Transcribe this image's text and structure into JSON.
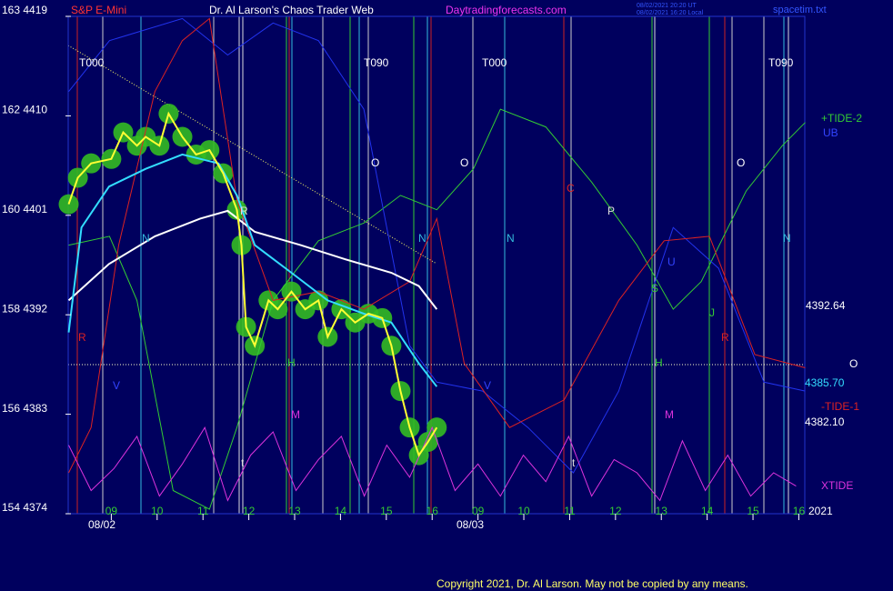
{
  "chart_data": {
    "type": "line",
    "instrument": "S&P E-Mini",
    "title": "Dr. Al Larson's Chaos Trader Web",
    "site": "Daytradingforecasts.com",
    "timestamps": [
      "08/02/2021 20:20 UT",
      "08/02/2021 16:20 Local"
    ],
    "file": "spacetim.txt",
    "copyright": "Copyright 2021, Dr. Al Larson. May not be copied by any means.",
    "year": "2021",
    "date_labels": [
      "08/02",
      "08/03"
    ],
    "ylim": [
      4374,
      4419
    ],
    "yticks": [
      {
        "value": 4419,
        "label": "163 4419"
      },
      {
        "value": 4410,
        "label": "162 4410"
      },
      {
        "value": 4401,
        "label": "160 4401"
      },
      {
        "value": 4392,
        "label": "158 4392"
      },
      {
        "value": 4383,
        "label": "156 4383"
      },
      {
        "value": 4374,
        "label": "154 4374"
      }
    ],
    "xlim": [
      0,
      16.13
    ],
    "xticks": [
      {
        "value": 1,
        "label": "09"
      },
      {
        "value": 2,
        "label": "10"
      },
      {
        "value": 3,
        "label": "11"
      },
      {
        "value": 4,
        "label": "12"
      },
      {
        "value": 5,
        "label": "13"
      },
      {
        "value": 6,
        "label": "14"
      },
      {
        "value": 7,
        "label": "15"
      },
      {
        "value": 8,
        "label": "16"
      },
      {
        "value": 9,
        "label": "09"
      },
      {
        "value": 10,
        "label": "10"
      },
      {
        "value": 11,
        "label": "11"
      },
      {
        "value": 12,
        "label": "12"
      },
      {
        "value": 13,
        "label": "13"
      },
      {
        "value": 14,
        "label": "14"
      },
      {
        "value": 15,
        "label": "15"
      },
      {
        "value": 16,
        "label": "16"
      }
    ],
    "right_labels": [
      4392.64,
      "O",
      {
        "value": 4385.7,
        "label": "4385.70"
      },
      {
        "value": 4382.1,
        "label": "4382.10"
      }
    ],
    "annotations": [
      "T000",
      "T090",
      "T000",
      "T090",
      "R",
      "N",
      "V",
      "R",
      "H",
      "M",
      "t",
      "O",
      "O",
      "N",
      "N",
      "V",
      "C",
      "P",
      "U",
      "S",
      "J",
      "H",
      "R",
      "M",
      "t",
      "O",
      "N"
    ],
    "series": [
      {
        "color": "#ffff33",
        "x": [
          0.07,
          0.27,
          0.56,
          1.0,
          1.26,
          1.56,
          1.75,
          2.05,
          2.25,
          2.55,
          2.85,
          3.14,
          3.44,
          3.74,
          3.84,
          3.94,
          4.13,
          4.43,
          4.63,
          4.93,
          5.23,
          5.52,
          5.72,
          6.02,
          6.32,
          6.61,
          6.91,
          7.11,
          7.31,
          7.51,
          7.71,
          7.91,
          8.1
        ],
        "values": [
          4402.0,
          4404.4,
          4405.7,
          4406.1,
          4408.5,
          4407.3,
          4408.1,
          4407.3,
          4410.2,
          4408.1,
          4406.5,
          4406.9,
          4404.8,
          4401.5,
          4398.3,
          4390.9,
          4389.2,
          4393.3,
          4392.5,
          4394.1,
          4392.5,
          4393.3,
          4390.0,
          4392.5,
          4391.3,
          4392.1,
          4391.7,
          4389.2,
          4385.1,
          4381.8,
          4379.3,
          4380.5,
          4381.8
        ]
      },
      {
        "color": "#33ddff",
        "x": [
          0.07,
          0.35,
          0.95,
          1.75,
          2.55,
          3.34,
          3.74,
          4.13,
          4.93,
          5.72,
          6.51,
          7.11,
          7.71,
          8.1
        ],
        "values": [
          4390.4,
          4399.9,
          4403.6,
          4405.2,
          4406.5,
          4405.7,
          4402.8,
          4398.3,
          4395.8,
          4393.3,
          4392.1,
          4391.3,
          4387.6,
          4385.5
        ]
      },
      {
        "color": "#ffffff",
        "x": [
          0.07,
          0.95,
          1.95,
          2.94,
          3.54,
          4.13,
          5.13,
          6.12,
          7.11,
          7.71,
          8.1
        ],
        "values": [
          4393.3,
          4396.6,
          4399.1,
          4400.7,
          4401.4,
          4399.5,
          4398.3,
          4397.0,
          4395.8,
          4394.6,
          4392.5
        ]
      },
      {
        "name": "+TIDE-2",
        "color": "#33cc33",
        "x": [
          0.07,
          0.96,
          1.56,
          2.35,
          3.14,
          3.74,
          4.53,
          5.52,
          6.51,
          7.31,
          8.1,
          8.9,
          9.49,
          10.48,
          11.48,
          12.47,
          13.26,
          13.87,
          14.85,
          15.64,
          16.14
        ],
        "values": [
          4398.3,
          4399.1,
          4393.3,
          4376.1,
          4374.4,
          4381.8,
          4393.3,
          4398.7,
          4400.3,
          4402.8,
          4401.5,
          4405.2,
          4410.6,
          4409.0,
          4404.0,
          4398.3,
          4392.5,
          4395.0,
          4403.2,
          4407.3,
          4409.4
        ]
      },
      {
        "name": "UB",
        "color": "#2233ee",
        "x": [
          0.07,
          0.96,
          2.55,
          3.54,
          4.53,
          5.52,
          6.51,
          7.51,
          8.1,
          9.1,
          10.09,
          11.08,
          12.07,
          13.26,
          14.25,
          15.24,
          16.14
        ],
        "values": [
          4412.2,
          4416.8,
          4418.8,
          4415.5,
          4418.4,
          4416.8,
          4410.6,
          4389.2,
          4385.9,
          4385.1,
          4381.8,
          4377.7,
          4385.1,
          4399.9,
          4396.2,
          4385.9,
          4385.1
        ]
      },
      {
        "name": "-TIDE-1",
        "color": "#dd2222",
        "x": [
          0.07,
          0.56,
          1.16,
          1.95,
          2.55,
          3.14,
          3.74,
          4.53,
          5.52,
          6.51,
          7.51,
          8.1,
          8.7,
          9.69,
          10.88,
          12.07,
          13.06,
          14.05,
          15.04,
          16.14
        ],
        "values": [
          4377.7,
          4381.8,
          4398.3,
          4412.2,
          4416.8,
          4418.8,
          4402.4,
          4393.3,
          4394.1,
          4392.5,
          4395.0,
          4400.7,
          4387.6,
          4381.8,
          4384.3,
          4393.3,
          4398.7,
          4399.1,
          4388.4,
          4387.2
        ]
      },
      {
        "name": "XTIDE",
        "color": "#dd33dd",
        "x": [
          0.07,
          0.56,
          1.06,
          1.56,
          2.05,
          2.55,
          3.04,
          3.54,
          4.04,
          4.53,
          5.03,
          5.52,
          6.02,
          6.52,
          7.01,
          7.51,
          8.0,
          8.5,
          9.0,
          9.49,
          9.99,
          10.48,
          10.98,
          11.48,
          11.97,
          12.47,
          12.97,
          13.46,
          13.96,
          14.45,
          14.95,
          15.45,
          15.94
        ],
        "values": [
          4380.2,
          4376.1,
          4378.1,
          4381.0,
          4375.6,
          4378.5,
          4381.8,
          4375.2,
          4379.3,
          4381.4,
          4376.1,
          4378.9,
          4381.0,
          4375.6,
          4380.2,
          4377.3,
          4381.8,
          4376.1,
          4378.5,
          4375.6,
          4379.3,
          4376.9,
          4381.0,
          4375.6,
          4378.9,
          4377.7,
          4375.2,
          4380.6,
          4376.1,
          4379.3,
          4375.6,
          4377.7,
          4376.5
        ]
      }
    ]
  }
}
